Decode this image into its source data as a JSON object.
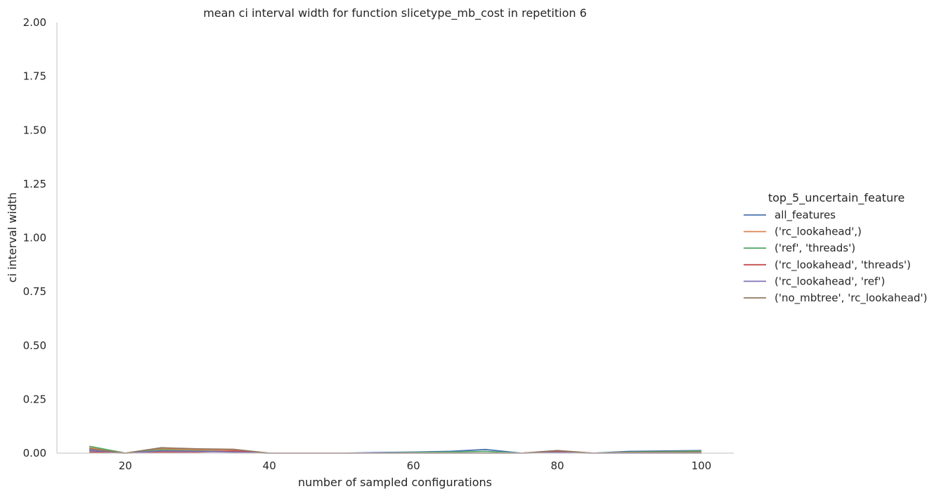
{
  "chart_data": {
    "type": "line",
    "title": "mean ci interval width for function slicetype_mb_cost in repetition 6",
    "xlabel": "number of sampled configurations",
    "ylabel": "ci interval width",
    "xlim": [
      10.5,
      104.5
    ],
    "ylim": [
      0,
      2.0
    ],
    "xticks": [
      20,
      40,
      60,
      80,
      100
    ],
    "yticks": [
      0.0,
      0.25,
      0.5,
      0.75,
      1.0,
      1.25,
      1.5,
      1.75,
      2.0
    ],
    "ytick_labels": [
      "0.00",
      "0.25",
      "0.50",
      "0.75",
      "1.00",
      "1.25",
      "1.50",
      "1.75",
      "2.00"
    ],
    "grid": false,
    "legend_title": "top_5_uncertain_feature",
    "legend_position": "right",
    "x": [
      15,
      20,
      25,
      30,
      35,
      40,
      45,
      50,
      55,
      60,
      65,
      70,
      75,
      80,
      85,
      90,
      95,
      100
    ],
    "series": [
      {
        "name": "all_features",
        "color": "#4c72b0",
        "values": [
          0.012,
          0.0,
          0.01,
          0.01,
          0.008,
          0.0,
          0.0,
          0.0,
          0.003,
          0.005,
          0.008,
          0.017,
          0.0,
          0.006,
          0.0,
          0.008,
          0.01,
          0.012
        ]
      },
      {
        "name": "('rc_lookahead',)",
        "color": "#dd8452",
        "values": [
          0.025,
          0.0,
          0.02,
          0.015,
          0.015,
          0.0,
          0.0,
          0.0,
          0.0,
          0.0,
          0.0,
          0.0,
          0.0,
          0.01,
          0.0,
          0.002,
          0.003,
          0.004
        ]
      },
      {
        "name": "('ref', 'threads')",
        "color": "#55a868",
        "values": [
          0.032,
          0.0,
          0.015,
          0.01,
          0.005,
          0.0,
          0.0,
          0.0,
          0.0,
          0.003,
          0.005,
          0.008,
          0.0,
          0.004,
          0.0,
          0.005,
          0.007,
          0.01
        ]
      },
      {
        "name": "('rc_lookahead', 'threads')",
        "color": "#c44e52",
        "values": [
          0.005,
          0.0,
          0.005,
          0.005,
          0.01,
          0.0,
          0.0,
          0.0,
          0.0,
          0.0,
          0.0,
          0.0,
          0.0,
          0.008,
          0.0,
          0.0,
          0.0,
          0.0
        ]
      },
      {
        "name": "('rc_lookahead', 'ref')",
        "color": "#8172b3",
        "values": [
          0.015,
          0.0,
          0.01,
          0.008,
          0.005,
          0.0,
          0.0,
          0.0,
          0.0,
          0.0,
          0.0,
          0.0,
          0.0,
          0.003,
          0.0,
          0.0,
          0.0,
          0.0
        ]
      },
      {
        "name": "('no_mbtree', 'rc_lookahead')",
        "color": "#937860",
        "values": [
          0.02,
          0.0,
          0.025,
          0.02,
          0.018,
          0.0,
          0.0,
          0.0,
          0.0,
          0.0,
          0.0,
          0.0,
          0.0,
          0.012,
          0.0,
          0.003,
          0.004,
          0.005
        ]
      }
    ]
  }
}
